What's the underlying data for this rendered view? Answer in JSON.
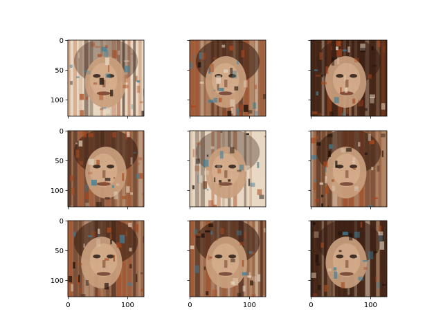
{
  "figure": {
    "background": "#ffffff",
    "rows": 3,
    "cols": 3,
    "share_x": true,
    "share_y": true
  },
  "chart_data": {
    "type": "image-grid",
    "title": "",
    "xlabel": "",
    "ylabel": "",
    "image_size": [
      128,
      128
    ],
    "xlim": [
      0,
      128
    ],
    "ylim": [
      128,
      0
    ],
    "x_ticks": [
      0,
      100
    ],
    "y_ticks": [
      0,
      50,
      100
    ],
    "x_tick_labels": [
      "0",
      "100"
    ],
    "y_tick_labels": [
      "0",
      "50",
      "100"
    ],
    "palette": {
      "skin": "#c9a07e",
      "dark_brown": "#3a2014",
      "rust": "#a8481e",
      "cream": "#e8d8c4",
      "teal": "#3f7f99",
      "black": "#120a06"
    },
    "panels": [
      {
        "row": 0,
        "col": 0,
        "content": "generated-face",
        "tone": "light"
      },
      {
        "row": 0,
        "col": 1,
        "content": "generated-face",
        "tone": "medium"
      },
      {
        "row": 0,
        "col": 2,
        "content": "generated-face",
        "tone": "dark"
      },
      {
        "row": 1,
        "col": 0,
        "content": "generated-face",
        "tone": "medium"
      },
      {
        "row": 1,
        "col": 1,
        "content": "generated-face",
        "tone": "light"
      },
      {
        "row": 1,
        "col": 2,
        "content": "generated-face",
        "tone": "medium"
      },
      {
        "row": 2,
        "col": 0,
        "content": "generated-face",
        "tone": "medium"
      },
      {
        "row": 2,
        "col": 1,
        "content": "generated-face",
        "tone": "medium"
      },
      {
        "row": 2,
        "col": 2,
        "content": "generated-face",
        "tone": "dark"
      }
    ]
  }
}
